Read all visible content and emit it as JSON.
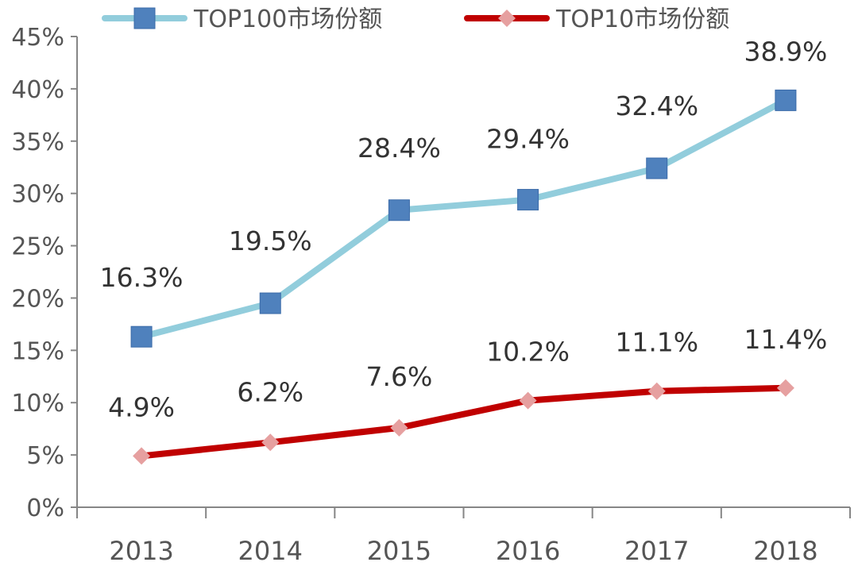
{
  "chart_data": {
    "type": "line",
    "categories": [
      "2013",
      "2014",
      "2015",
      "2016",
      "2017",
      "2018"
    ],
    "series": [
      {
        "name": "TOP100市场份额",
        "values": [
          16.3,
          19.5,
          28.4,
          29.4,
          32.4,
          38.9
        ],
        "labels": [
          "16.3%",
          "19.5%",
          "28.4%",
          "29.4%",
          "32.4%",
          "38.9%"
        ],
        "line_color": "#92CDDC",
        "marker_color": "#4F81BD",
        "marker": "square"
      },
      {
        "name": "TOP10市场份额",
        "values": [
          4.9,
          6.2,
          7.6,
          10.2,
          11.1,
          11.4
        ],
        "labels": [
          "4.9%",
          "6.2%",
          "7.6%",
          "10.2%",
          "11.1%",
          "11.4%"
        ],
        "line_color": "#C00000",
        "marker_color": "#E6A0A0",
        "marker": "diamond"
      }
    ],
    "title": "",
    "xlabel": "",
    "ylabel": "",
    "ylim": [
      0,
      45
    ],
    "yticks": [
      0,
      5,
      10,
      15,
      20,
      25,
      30,
      35,
      40,
      45
    ],
    "ytick_labels": [
      "0%",
      "5%",
      "10%",
      "15%",
      "20%",
      "25%",
      "30%",
      "35%",
      "40%",
      "45%"
    ],
    "grid": false,
    "legend_position": "top"
  }
}
